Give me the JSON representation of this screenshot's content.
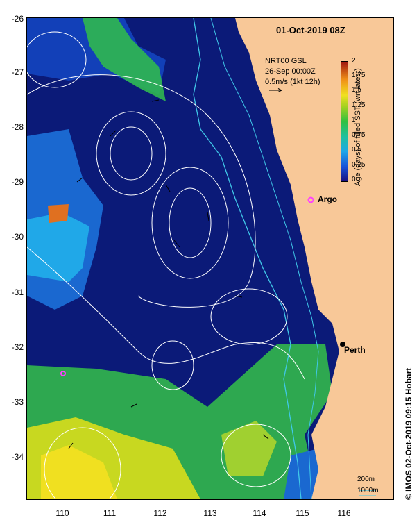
{
  "title": "01-Oct-2019 08Z",
  "product": "NRT00 GSL",
  "product_date": "26-Sep 00:00Z",
  "vector_scale": "0.5m/s (1kt 12h)",
  "colorbar": {
    "title": "Age (days) of filled SST (wrt latest)",
    "ticks": [
      "2",
      "1.75",
      "1.5",
      "1.25",
      "1",
      "0.75",
      "0.5",
      "0.25",
      "0"
    ],
    "colors": [
      "#a01810",
      "#f09018",
      "#f0e020",
      "#a0d020",
      "#30c040",
      "#20c0a0",
      "#1ea8e8",
      "#1850d8",
      "#1a1080"
    ]
  },
  "y_axis": [
    "-26",
    "-27",
    "-28",
    "-29",
    "-30",
    "-31",
    "-32",
    "-33",
    "-34"
  ],
  "x_axis": [
    "110",
    "111",
    "112",
    "113",
    "114",
    "115",
    "116"
  ],
  "markers": {
    "argo": {
      "label": "Argo",
      "lon": 115.2,
      "lat": -29.35,
      "color": "#ff40ff"
    },
    "argo2": {
      "lon": 110.0,
      "lat": -32.45,
      "color": "#ff40ff"
    },
    "perth": {
      "label": "Perth",
      "lon": 115.85,
      "lat": -31.95
    }
  },
  "isobaths": {
    "shallow": "200m",
    "deep": "1000m"
  },
  "copyright": "© IMOS 02-Oct-2019 09:15 Hobart",
  "colors": {
    "ocean": "#0b1a78",
    "land": "#f8c898",
    "contour": "#ffffff",
    "isobath": "#40c8e8"
  }
}
